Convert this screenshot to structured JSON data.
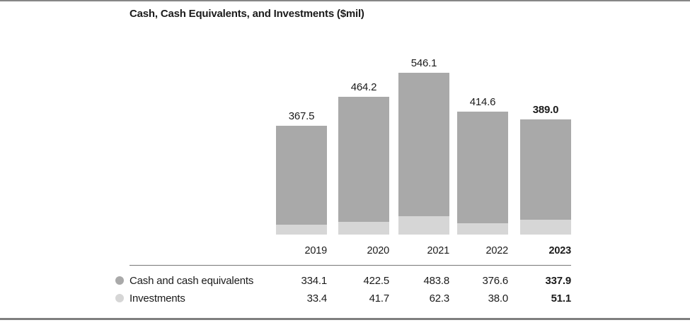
{
  "title": "Cash, Cash Equivalents, and Investments ($mil)",
  "chart_data": {
    "type": "bar",
    "stacked": true,
    "title": "Cash, Cash Equivalents, and Investments ($mil)",
    "categories": [
      "2019",
      "2020",
      "2021",
      "2022",
      "2023"
    ],
    "series": [
      {
        "name": "Cash and cash equivalents",
        "values": [
          334.1,
          422.5,
          483.8,
          376.6,
          337.9
        ],
        "display": [
          "334.1",
          "422.5",
          "483.8",
          "376.6",
          "337.9"
        ]
      },
      {
        "name": "Investments",
        "values": [
          33.4,
          41.7,
          62.3,
          38.0,
          51.1
        ],
        "display": [
          "33.4",
          "41.7",
          "62.3",
          "38.0",
          "51.1"
        ]
      }
    ],
    "totals": [
      367.5,
      464.2,
      546.1,
      414.6,
      389.0
    ],
    "total_labels": [
      "367.5",
      "464.2",
      "546.1",
      "414.6",
      "389.0"
    ],
    "xlabel": "",
    "ylabel": "",
    "axes_visible": false,
    "grid": false,
    "legend_position": "bottom-left-table",
    "highlight_last_category": true
  },
  "colors": {
    "cash_segment": "#a9a9a9",
    "investments_segment": "#d6d6d6",
    "text": "#1b1b1b",
    "table_rule": "#777777",
    "page_border": "#868686"
  }
}
